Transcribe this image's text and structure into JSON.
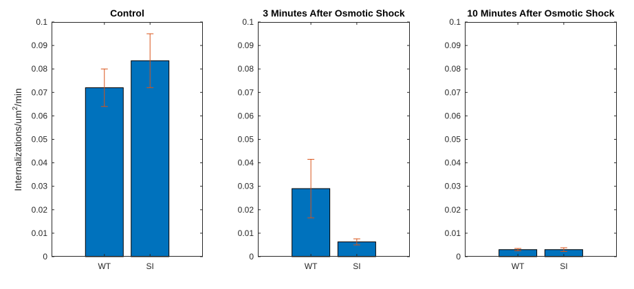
{
  "figure": {
    "ylabel_main": "Internalizations/um",
    "ylabel_sup": "2",
    "ylabel_tail": "/min"
  },
  "colors": {
    "bar": "#0072BD",
    "error": "#D95319",
    "axis": "#262626",
    "background": "#ffffff"
  },
  "chart_data": [
    {
      "type": "bar",
      "title": "Control",
      "categories": [
        "WT",
        "SI"
      ],
      "values": [
        0.072,
        0.0835
      ],
      "errors": [
        0.008,
        0.0115
      ],
      "ylim": [
        0,
        0.1
      ],
      "yticks": [
        "0",
        "0.01",
        "0.02",
        "0.03",
        "0.04",
        "0.05",
        "0.06",
        "0.07",
        "0.08",
        "0.09",
        "0.1"
      ],
      "ylabel": "Internalizations/um2/min",
      "grid": false
    },
    {
      "type": "bar",
      "title": "3 Minutes After Osmotic Shock",
      "categories": [
        "WT",
        "SI"
      ],
      "values": [
        0.029,
        0.0063
      ],
      "errors": [
        0.0125,
        0.0013
      ],
      "ylim": [
        0,
        0.1
      ],
      "yticks": [
        "0",
        "0.01",
        "0.02",
        "0.03",
        "0.04",
        "0.05",
        "0.06",
        "0.07",
        "0.08",
        "0.09",
        "0.1"
      ],
      "grid": false
    },
    {
      "type": "bar",
      "title": "10 Minutes After Osmotic Shock",
      "categories": [
        "WT",
        "SI"
      ],
      "values": [
        0.003,
        0.003
      ],
      "errors": [
        0.0005,
        0.0008
      ],
      "ylim": [
        0,
        0.1
      ],
      "yticks": [
        "0",
        "0.01",
        "0.02",
        "0.03",
        "0.04",
        "0.05",
        "0.06",
        "0.07",
        "0.08",
        "0.09",
        "0.1"
      ],
      "grid": false
    }
  ]
}
